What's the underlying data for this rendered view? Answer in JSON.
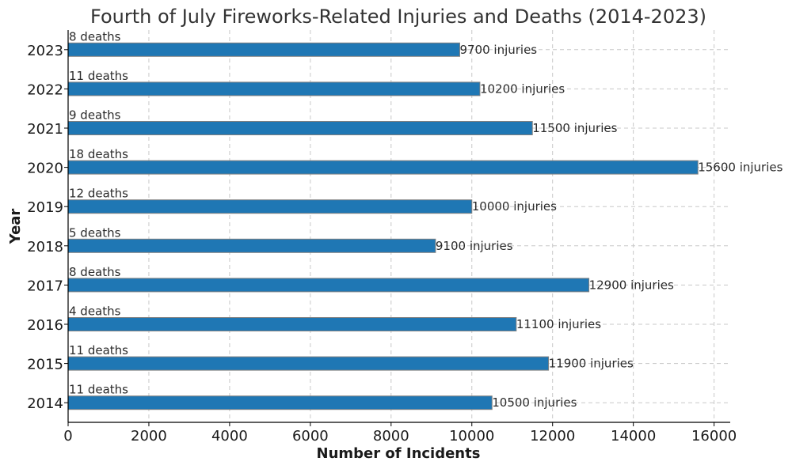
{
  "chart_data": {
    "type": "bar",
    "orientation": "horizontal",
    "title": "Fourth of July Fireworks-Related Injuries and Deaths (2014-2023)",
    "xlabel": "Number of Incidents",
    "ylabel": "Year",
    "xlim": [
      0,
      16400
    ],
    "x_ticks": [
      0,
      2000,
      4000,
      6000,
      8000,
      10000,
      12000,
      14000,
      16000
    ],
    "grid": true,
    "bar_color": "#1f77b4",
    "bar_edge_color": "#808080",
    "categories": [
      "2014",
      "2015",
      "2016",
      "2017",
      "2018",
      "2019",
      "2020",
      "2021",
      "2022",
      "2023"
    ],
    "series": [
      {
        "name": "Injuries",
        "values": [
          10500,
          11900,
          11100,
          12900,
          9100,
          10000,
          15600,
          11500,
          10200,
          9700
        ],
        "labels": [
          "10500 injuries",
          "11900 injuries",
          "11100 injuries",
          "12900 injuries",
          "9100 injuries",
          "10000 injuries",
          "15600 injuries",
          "11500 injuries",
          "10200 injuries",
          "9700 injuries"
        ]
      },
      {
        "name": "Deaths",
        "values": [
          11,
          11,
          4,
          8,
          5,
          12,
          18,
          9,
          11,
          8
        ],
        "labels": [
          "11 deaths",
          "11 deaths",
          "4 deaths",
          "8 deaths",
          "5 deaths",
          "12 deaths",
          "18 deaths",
          "9 deaths",
          "11 deaths",
          "8 deaths"
        ]
      }
    ]
  }
}
